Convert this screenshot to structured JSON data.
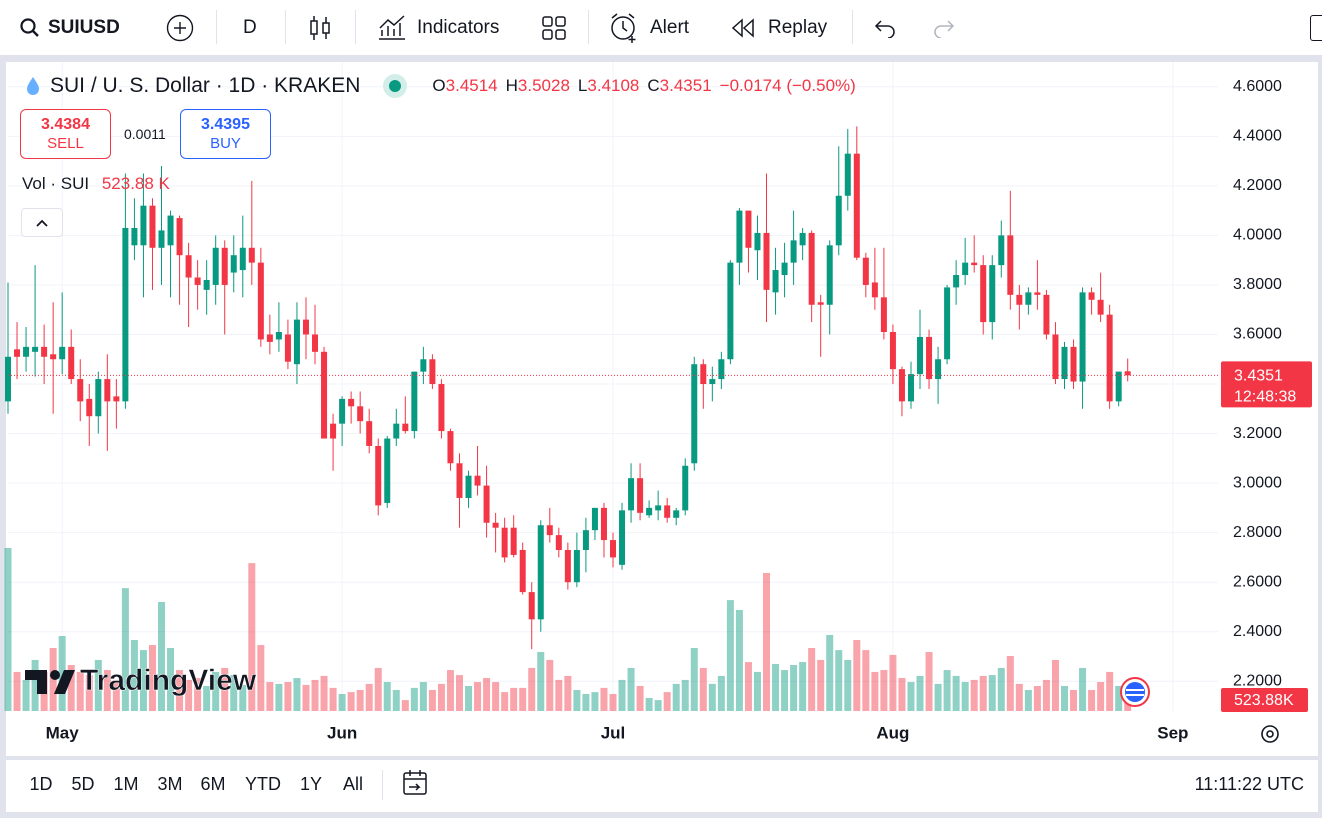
{
  "toolbar": {
    "symbol": "SUIUSD",
    "interval": "D",
    "indicators": "Indicators",
    "alert": "Alert",
    "replay": "Replay"
  },
  "legend": {
    "ohlc_letters": [
      "O",
      "H",
      "L",
      "C"
    ],
    "change": "−0.0174",
    "change_percent": "(−0.50%)",
    "sell_price": 3.4384,
    "sell_label": "SELL",
    "spread": 0.0011,
    "buy_price": 3.4395,
    "buy_label": "BUY"
  },
  "countdown": "12:48:38",
  "watermark": "TradingView",
  "time_ranges": [
    "1D",
    "5D",
    "1M",
    "3M",
    "6M",
    "YTD",
    "1Y",
    "All"
  ],
  "clock": "11:11:22 UTC",
  "chart_data": {
    "type": "candlestick",
    "title": "SUI / U. S. Dollar · 1D · KRAKEN",
    "up_color": "#089981",
    "down_color": "#f23645",
    "grid": true,
    "xlim": [
      0,
      134
    ],
    "xticks": [
      {
        "value": 6,
        "label": "May"
      },
      {
        "value": 37,
        "label": "Jun"
      },
      {
        "value": 67,
        "label": "Jul"
      },
      {
        "value": 98,
        "label": "Aug"
      },
      {
        "value": 129,
        "label": "Sep"
      }
    ],
    "ylim": [
      2.08,
      4.7
    ],
    "yticks": [
      {
        "value": 2.2,
        "label": "2.2000"
      },
      {
        "value": 2.4,
        "label": "2.4000"
      },
      {
        "value": 2.6,
        "label": "2.6000"
      },
      {
        "value": 2.8,
        "label": "2.8000"
      },
      {
        "value": 3.0,
        "label": "3.0000"
      },
      {
        "value": 3.2,
        "label": "3.2000"
      },
      {
        "value": 3.4,
        "label": "3.4000"
      },
      {
        "value": 3.6,
        "label": "3.6000"
      },
      {
        "value": 3.8,
        "label": "3.8000"
      },
      {
        "value": 4.0,
        "label": "4.0000"
      },
      {
        "value": 4.2,
        "label": "4.2000"
      },
      {
        "value": 4.4,
        "label": "4.4000"
      },
      {
        "value": 4.6,
        "label": "4.6000"
      }
    ],
    "open": [
      3.33,
      3.54,
      3.51,
      3.53,
      3.55,
      3.52,
      3.5,
      3.55,
      3.42,
      3.34,
      3.27,
      3.42,
      3.35,
      3.33,
      3.96,
      3.96,
      4.12,
      3.95,
      3.96,
      4.07,
      3.92,
      3.83,
      3.78,
      3.8,
      3.95,
      3.85,
      3.86,
      3.95,
      3.89,
      3.6,
      3.58,
      3.6,
      3.48,
      3.66,
      3.6,
      3.53,
      3.24,
      3.24,
      3.34,
      3.31,
      3.25,
      3.15,
      2.92,
      3.18,
      3.24,
      3.21,
      3.45,
      3.5,
      3.4,
      3.21,
      3.08,
      2.94,
      3.03,
      2.99,
      2.84,
      2.82,
      2.82,
      2.73,
      2.56,
      2.45,
      2.83,
      2.79,
      2.73,
      2.6,
      2.73,
      2.81,
      2.9,
      2.77,
      2.67,
      2.89,
      3.02,
      2.87,
      2.89,
      2.91,
      2.86,
      2.89,
      3.08,
      3.48,
      3.4,
      3.42,
      3.5,
      3.89,
      4.1,
      3.94,
      4.01,
      3.77,
      3.84,
      3.89,
      3.96,
      4.01,
      3.73,
      3.72,
      3.96,
      4.16,
      4.33,
      3.91,
      3.81,
      3.75,
      3.61,
      3.46,
      3.33,
      3.44,
      3.59,
      3.42,
      3.5,
      3.79,
      3.84,
      3.89,
      3.88,
      3.65,
      3.88,
      4.0,
      3.76,
      3.72,
      3.77,
      3.76,
      3.6,
      3.42,
      3.55,
      3.41,
      3.77,
      3.74,
      3.68,
      3.33,
      3.4514
    ],
    "high": [
      3.81,
      3.65,
      3.63,
      3.88,
      3.64,
      3.73,
      3.77,
      3.62,
      3.5,
      3.4,
      3.45,
      3.52,
      3.42,
      4.25,
      4.15,
      4.25,
      4.15,
      4.28,
      4.1,
      4.08,
      3.97,
      3.9,
      3.9,
      4.0,
      3.98,
      4.0,
      4.08,
      4.22,
      3.95,
      3.68,
      3.73,
      3.66,
      3.73,
      3.75,
      3.72,
      3.55,
      3.28,
      3.35,
      3.37,
      3.37,
      3.3,
      3.18,
      3.19,
      3.3,
      3.35,
      3.45,
      3.55,
      3.52,
      3.42,
      3.22,
      3.12,
      3.05,
      3.15,
      3.07,
      2.88,
      2.86,
      2.87,
      2.76,
      2.6,
      2.85,
      2.9,
      2.82,
      2.76,
      2.8,
      2.86,
      2.9,
      2.92,
      2.8,
      2.92,
      3.08,
      3.08,
      2.93,
      2.97,
      2.94,
      2.9,
      3.1,
      3.51,
      3.5,
      3.47,
      3.53,
      3.9,
      4.11,
      4.1,
      4.08,
      4.25,
      3.95,
      3.97,
      4.1,
      4.03,
      4.02,
      3.76,
      3.98,
      4.36,
      4.43,
      4.44,
      3.93,
      3.95,
      3.95,
      3.64,
      3.47,
      3.49,
      3.7,
      3.62,
      3.55,
      3.8,
      3.9,
      3.99,
      4.0,
      3.92,
      3.92,
      4.06,
      4.18,
      3.8,
      3.79,
      3.9,
      3.78,
      3.65,
      3.57,
      3.58,
      3.79,
      3.79,
      3.85,
      3.72,
      3.45,
      3.5028
    ],
    "low": [
      3.28,
      3.42,
      3.45,
      3.43,
      3.4,
      3.28,
      3.44,
      3.4,
      3.25,
      3.15,
      3.2,
      3.13,
      3.22,
      3.3,
      3.9,
      3.75,
      3.78,
      3.8,
      3.75,
      3.72,
      3.63,
      3.7,
      3.68,
      3.72,
      3.6,
      3.77,
      3.75,
      3.8,
      3.55,
      3.52,
      3.53,
      3.46,
      3.4,
      3.5,
      3.48,
      3.18,
      3.05,
      3.15,
      3.24,
      3.2,
      3.12,
      2.87,
      2.9,
      3.15,
      3.2,
      3.18,
      3.4,
      3.38,
      3.18,
      3.05,
      2.82,
      2.9,
      2.95,
      2.78,
      2.72,
      2.68,
      2.7,
      2.55,
      2.33,
      2.4,
      2.76,
      2.7,
      2.57,
      2.58,
      2.64,
      2.77,
      2.7,
      2.66,
      2.65,
      2.84,
      2.85,
      2.86,
      2.85,
      2.84,
      2.83,
      2.87,
      3.05,
      3.3,
      3.33,
      3.38,
      3.48,
      3.8,
      3.85,
      3.82,
      3.65,
      3.68,
      3.75,
      3.8,
      3.9,
      3.65,
      3.51,
      3.6,
      3.92,
      4.1,
      3.9,
      3.75,
      3.7,
      3.58,
      3.4,
      3.27,
      3.3,
      3.38,
      3.38,
      3.32,
      3.48,
      3.72,
      3.8,
      3.85,
      3.6,
      3.58,
      3.83,
      3.7,
      3.62,
      3.68,
      3.7,
      3.58,
      3.4,
      3.38,
      3.38,
      3.3,
      3.68,
      3.65,
      3.3,
      3.31,
      3.4108
    ],
    "close": [
      3.51,
      3.51,
      3.55,
      3.55,
      3.51,
      3.5,
      3.55,
      3.42,
      3.33,
      3.27,
      3.42,
      3.33,
      3.33,
      4.03,
      4.03,
      4.12,
      3.95,
      4.02,
      4.08,
      3.92,
      3.83,
      3.8,
      3.82,
      3.95,
      3.8,
      3.92,
      3.95,
      3.89,
      3.58,
      3.57,
      3.61,
      3.49,
      3.66,
      3.6,
      3.53,
      3.18,
      3.18,
      3.34,
      3.31,
      3.25,
      3.15,
      2.91,
      3.18,
      3.24,
      3.21,
      3.45,
      3.5,
      3.4,
      3.21,
      3.08,
      2.94,
      3.03,
      2.99,
      2.84,
      2.82,
      2.7,
      2.71,
      2.56,
      2.45,
      2.83,
      2.79,
      2.73,
      2.6,
      2.73,
      2.81,
      2.9,
      2.77,
      2.7,
      2.89,
      3.02,
      2.88,
      2.9,
      2.91,
      2.86,
      2.89,
      3.07,
      3.48,
      3.4,
      3.42,
      3.5,
      3.89,
      4.1,
      3.95,
      4.01,
      3.78,
      3.86,
      3.89,
      3.98,
      4.01,
      3.72,
      3.72,
      3.96,
      4.16,
      4.33,
      3.91,
      3.8,
      3.75,
      3.61,
      3.46,
      3.33,
      3.44,
      3.59,
      3.42,
      3.5,
      3.79,
      3.84,
      3.89,
      3.88,
      3.65,
      3.88,
      4.0,
      3.76,
      3.72,
      3.77,
      3.76,
      3.6,
      3.42,
      3.55,
      3.41,
      3.77,
      3.74,
      3.68,
      3.33,
      3.45,
      3.4351
    ],
    "volume": {
      "name": "Vol · SUI",
      "legend_value_label": "523.88 K",
      "axis_value_label": "523.88K",
      "values": [
        7760,
        1860,
        1480,
        2430,
        1860,
        3000,
        3570,
        2190,
        1860,
        1710,
        2430,
        1950,
        1480,
        5850,
        3380,
        2900,
        3140,
        5190,
        3000,
        1950,
        1480,
        1570,
        1190,
        1860,
        2050,
        1710,
        1240,
        7040,
        3140,
        1380,
        1290,
        1380,
        1570,
        1240,
        1480,
        1670,
        1100,
        810,
        900,
        1000,
        1290,
        2050,
        1380,
        1000,
        520,
        1100,
        1380,
        1000,
        1290,
        1950,
        1710,
        1190,
        1380,
        1570,
        1380,
        900,
        1100,
        1100,
        2050,
        2810,
        2430,
        1480,
        1670,
        1000,
        810,
        900,
        1100,
        810,
        1480,
        2050,
        1190,
        620,
        520,
        900,
        1290,
        1480,
        3000,
        2050,
        1290,
        1670,
        5280,
        4810,
        2330,
        1860,
        6570,
        2240,
        1950,
        2190,
        2330,
        3000,
        2430,
        3620,
        2900,
        2430,
        3380,
        2900,
        1860,
        1950,
        2670,
        1570,
        1380,
        1670,
        2810,
        1290,
        1950,
        1670,
        1380,
        1480,
        1670,
        1710,
        2050,
        2620,
        1290,
        1000,
        1190,
        1480,
        2430,
        1190,
        1000,
        2050,
        1000,
        1380,
        1860,
        1190,
        523.88
      ]
    }
  }
}
